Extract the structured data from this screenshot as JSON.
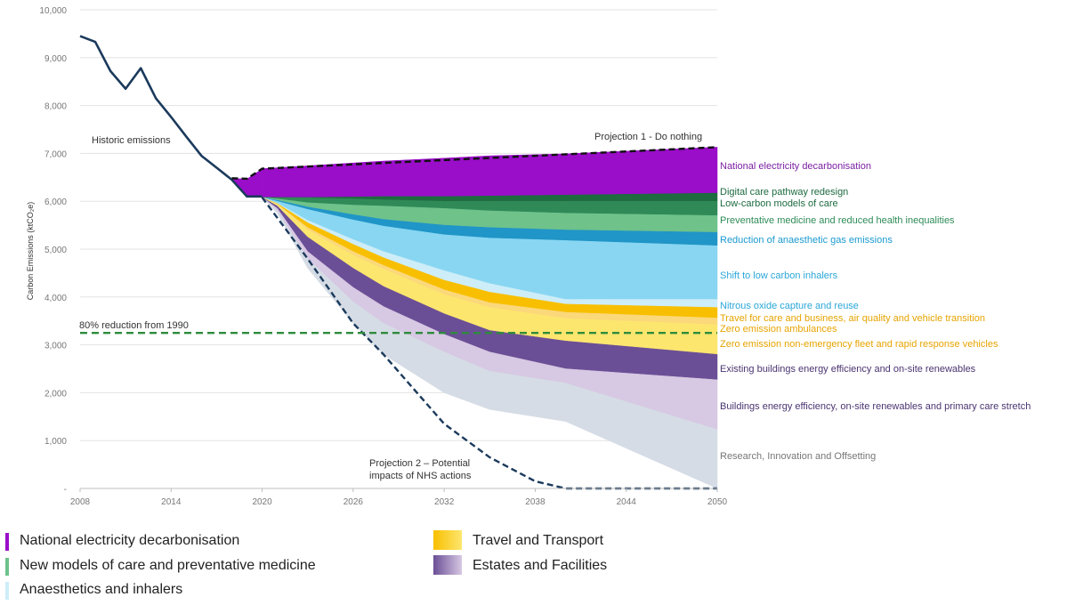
{
  "chart_data": {
    "type": "area",
    "title": "",
    "xlabel": "",
    "ylabel": "Carbon Emissions (ktCO₂e)",
    "xlim": [
      2008,
      2050
    ],
    "ylim": [
      0,
      10000
    ],
    "x_ticks": [
      "2008",
      "2014",
      "2020",
      "2026",
      "2032",
      "2038",
      "2044",
      "2050"
    ],
    "y_ticks": [
      "-",
      "1,000",
      "2,000",
      "3,000",
      "4,000",
      "5,000",
      "6,000",
      "7,000",
      "8,000",
      "9,000",
      "10,000"
    ],
    "grid": true,
    "historic": {
      "label": "Historic emissions",
      "color": "#1b3a5c",
      "x": [
        2008,
        2009,
        2010,
        2011,
        2012,
        2013,
        2014,
        2015,
        2016,
        2017,
        2018,
        2019,
        2020
      ],
      "y": [
        9450,
        9330,
        8720,
        8350,
        8780,
        8150,
        7760,
        7350,
        6950,
        6700,
        6450,
        6100,
        6100
      ]
    },
    "projection_1": {
      "label": "Projection 1 - Do nothing",
      "x": [
        2018,
        2019,
        2020,
        2050
      ],
      "y": [
        6480,
        6470,
        6680,
        7130
      ]
    },
    "projection_2": {
      "label_line1": "Projection 2 – Potential",
      "label_line2": "impacts of NHS actions",
      "x": [
        2020,
        2023,
        2026,
        2028,
        2032,
        2035,
        2038,
        2040,
        2050
      ],
      "y": [
        6080,
        4800,
        3450,
        2800,
        1350,
        650,
        150,
        0,
        0
      ]
    },
    "reduction_line": {
      "label": "80% reduction from 1990",
      "value": 3250,
      "color": "#2e8b3c"
    },
    "bands": {
      "x": [
        2020,
        2021,
        2023,
        2026,
        2028,
        2032,
        2035,
        2040,
        2050
      ],
      "boundaries": [
        [
          6680,
          6700,
          6740,
          6800,
          6840,
          6900,
          6950,
          6990,
          7130
        ],
        [
          6080,
          6080,
          6080,
          6090,
          6100,
          6100,
          6110,
          6130,
          6170
        ],
        [
          6080,
          6075,
          6070,
          6050,
          6030,
          6000,
          6000,
          6000,
          6000
        ],
        [
          6080,
          6050,
          5970,
          5920,
          5900,
          5850,
          5800,
          5750,
          5700
        ],
        [
          6080,
          6020,
          5880,
          5720,
          5620,
          5500,
          5450,
          5400,
          5350
        ],
        [
          6080,
          6000,
          5830,
          5610,
          5480,
          5300,
          5230,
          5180,
          5070
        ],
        [
          6080,
          5960,
          5600,
          5200,
          4950,
          4550,
          4280,
          3950,
          3950
        ],
        [
          6080,
          5950,
          5550,
          5100,
          4820,
          4350,
          4100,
          3850,
          3780
        ],
        [
          6080,
          5940,
          5450,
          4950,
          4660,
          4150,
          3880,
          3680,
          3560
        ],
        [
          6080,
          5930,
          5400,
          4870,
          4580,
          4050,
          3780,
          3550,
          3420
        ],
        [
          6080,
          5900,
          5250,
          4600,
          4220,
          3650,
          3300,
          3080,
          2800
        ],
        [
          6080,
          5850,
          4950,
          4200,
          3800,
          3220,
          2850,
          2500,
          2270
        ],
        [
          6080,
          5800,
          4800,
          3900,
          3450,
          2850,
          2450,
          2200,
          1230
        ],
        [
          6080,
          5750,
          4600,
          3450,
          2800,
          2000,
          1650,
          1400,
          0
        ]
      ],
      "series": [
        {
          "name": "National electricity decarbonisation",
          "color": "#9a0dc9",
          "label_color": "#7b1fa2"
        },
        {
          "name": "Digital care pathway redesign",
          "color": "#1d6b3f",
          "label_color": "#1d6b3f"
        },
        {
          "name": "Low-carbon models of care",
          "color": "#2f8a58",
          "label_color": "#1d6b3f"
        },
        {
          "name": "Preventative medicine and reduced health inequalities",
          "color": "#6ec28a",
          "label_color": "#2e8b57"
        },
        {
          "name": "Reduction of anaesthetic gas emissions",
          "color": "#2095c7",
          "label_color": "#1b9ad1"
        },
        {
          "name": "Shift to low carbon inhalers",
          "color": "#88d6f2",
          "label_color": "#2aa7d8"
        },
        {
          "name": "Nitrous oxide capture and reuse",
          "color": "#cdedf8",
          "label_color": "#2aa7d8"
        },
        {
          "name": "Travel for care and business, air quality and vehicle transition",
          "color": "#f8bf00",
          "label_color": "#e6a400"
        },
        {
          "name": "Zero emission ambulances",
          "color": "#fbd87a",
          "label_color": "#e6a400"
        },
        {
          "name": "Zero emission non-emergency fleet and rapid response vehicles",
          "color": "#fde66e",
          "label_color": "#e6a400"
        },
        {
          "name": "Existing buildings energy efficiency and on-site renewables",
          "color": "#6b4f96",
          "label_color": "#4a3470"
        },
        {
          "name": "Buildings energy efficiency, on-site renewables and primary care stretch",
          "color": "#d7c8e3",
          "label_color": "#4a3470"
        },
        {
          "name": "Research, Innovation and Offsetting",
          "color": "#d5dce5",
          "label_color": "#777777"
        }
      ]
    }
  },
  "legend": [
    {
      "label": "National electricity decarbonisation",
      "color": "#9a0dc9",
      "kind": "bar"
    },
    {
      "label": "New models of care and preventative medicine",
      "color": "#6ec28a",
      "kind": "bar"
    },
    {
      "label": "Anaesthetics and inhalers",
      "color": "#cdedf8",
      "kind": "bar"
    },
    {
      "label": "Travel and Transport",
      "color": "#f8bf00",
      "kind": "box"
    },
    {
      "label": "Estates and Facilities",
      "color": "#6b4f96",
      "kind": "box"
    }
  ]
}
